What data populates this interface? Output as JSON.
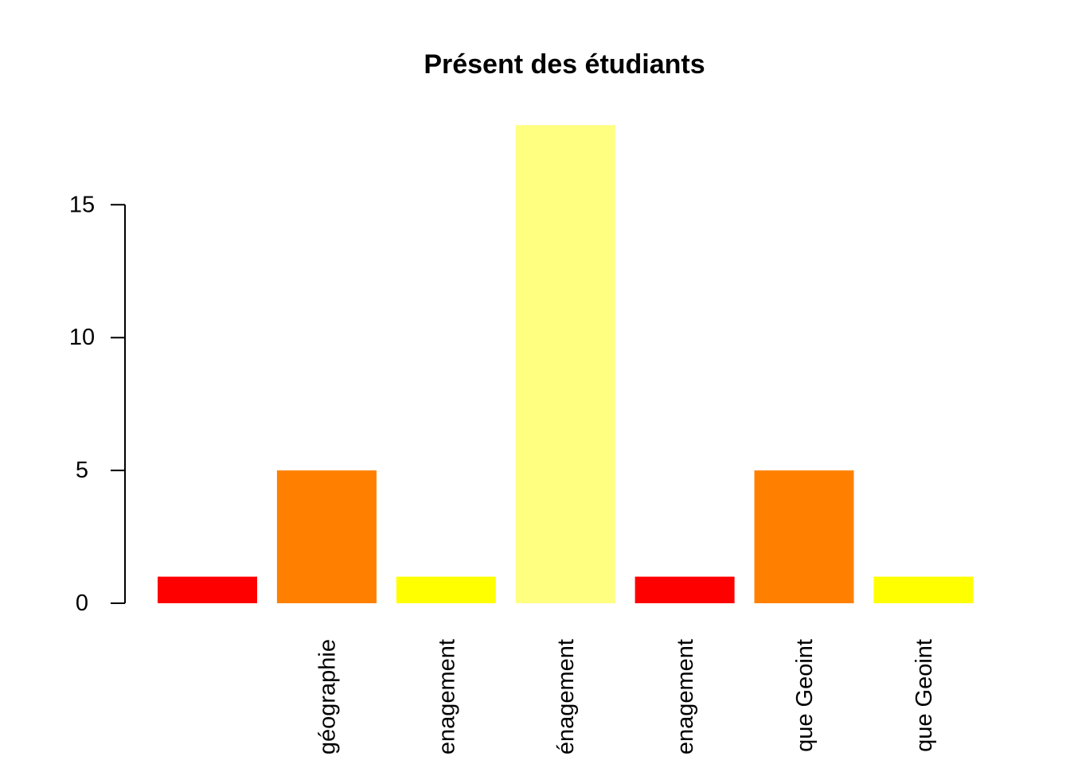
{
  "chart_data": {
    "type": "bar",
    "title": "Présent des étudiants",
    "xlabel": "",
    "ylabel": "",
    "categories": [
      "",
      "géographie",
      "enagement",
      "énagement",
      "enagement",
      "que Geoint",
      "que Geoint"
    ],
    "values": [
      1,
      5,
      1,
      18,
      1,
      5,
      1
    ],
    "colors": [
      "#FF0000",
      "#FF8000",
      "#FFFF00",
      "#FFFF80",
      "#FF0000",
      "#FF8000",
      "#FFFF00"
    ],
    "ylim": [
      0,
      18
    ],
    "yticks": [
      0,
      5,
      10,
      15
    ],
    "ytick_labels": [
      "0",
      "5",
      "10",
      "15"
    ],
    "grid": false,
    "legend": "none"
  }
}
